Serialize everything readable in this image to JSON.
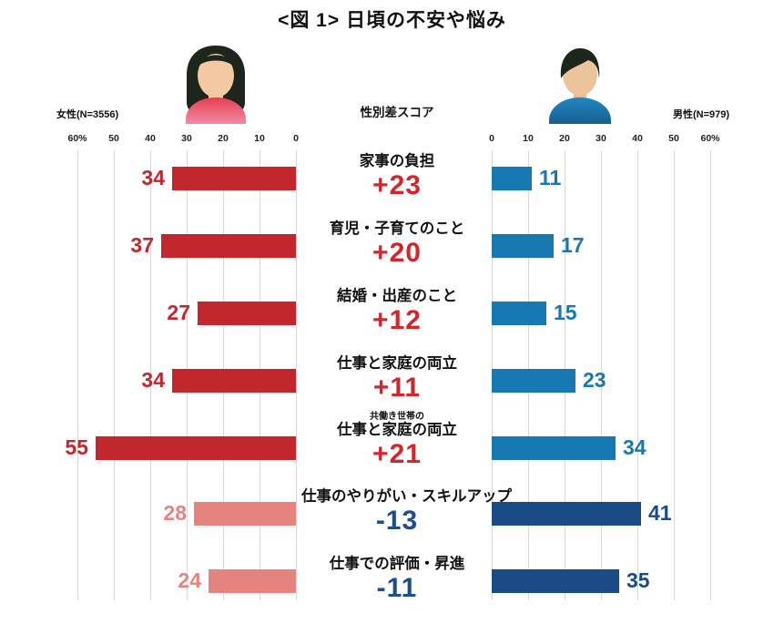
{
  "title": "<図 1> 日頃の不安や悩み",
  "center_header": "性別差スコア",
  "groups": {
    "female": {
      "label": "女性(N=3556)"
    },
    "male": {
      "label": "男性(N=979)"
    }
  },
  "axes": {
    "female_ticks": [
      "60%",
      "50",
      "40",
      "30",
      "20",
      "10",
      "0"
    ],
    "male_ticks": [
      "0",
      "10",
      "20",
      "30",
      "40",
      "50",
      "60%"
    ]
  },
  "colors": {
    "female_strong": "#c1272d",
    "female_light": "#e5837e",
    "male_medium": "#1878b2",
    "male_dark": "#1a4b84",
    "score_positive": "#d2262b",
    "score_negative": "#1c4e8c",
    "gridline": "#d8d8d8",
    "female_avatar_shirt_top": "#e6404e",
    "female_avatar_shirt_bottom": "#f28aa6",
    "male_avatar_shirt_top": "#2287c3",
    "male_avatar_shirt_bottom": "#15608f",
    "hair": "#1c261c",
    "skin_female": "#f2c9a2",
    "skin_male": "#ecc49c"
  },
  "chart_data": {
    "type": "bar",
    "layout": "mirrored-horizontal",
    "title": "<図 1> 日頃の不安や悩み",
    "grid": true,
    "axis": {
      "min": 0,
      "max": 60,
      "tick_step": 10,
      "unit": "%"
    },
    "categories": [
      "家事の負担",
      "育児・子育てのこと",
      "結婚・出産のこと",
      "仕事と家庭の両立",
      "共働き世帯の仕事と家庭の両立",
      "仕事のやりがい・スキルアップ",
      "仕事での評価・昇進"
    ],
    "category_notes": [
      "",
      "",
      "",
      "",
      "共働き世帯の",
      "",
      ""
    ],
    "category_main_labels": [
      "家事の負担",
      "育児・子育てのこと",
      "結婚・出産のこと",
      "仕事と家庭の両立",
      "仕事と家庭の両立",
      "仕事のやりがい・スキルアップ",
      "仕事での評価・昇進"
    ],
    "series": [
      {
        "name": "女性",
        "n": 3556,
        "values": [
          34,
          37,
          27,
          34,
          55,
          28,
          24
        ]
      },
      {
        "name": "男性",
        "n": 979,
        "values": [
          11,
          17,
          15,
          23,
          34,
          41,
          35
        ]
      }
    ],
    "gender_diff_scores": [
      23,
      20,
      12,
      11,
      21,
      -13,
      -11
    ],
    "gender_diff_labels": [
      "+23",
      "+20",
      "+12",
      "+11",
      "+21",
      "-13",
      "-11"
    ]
  }
}
